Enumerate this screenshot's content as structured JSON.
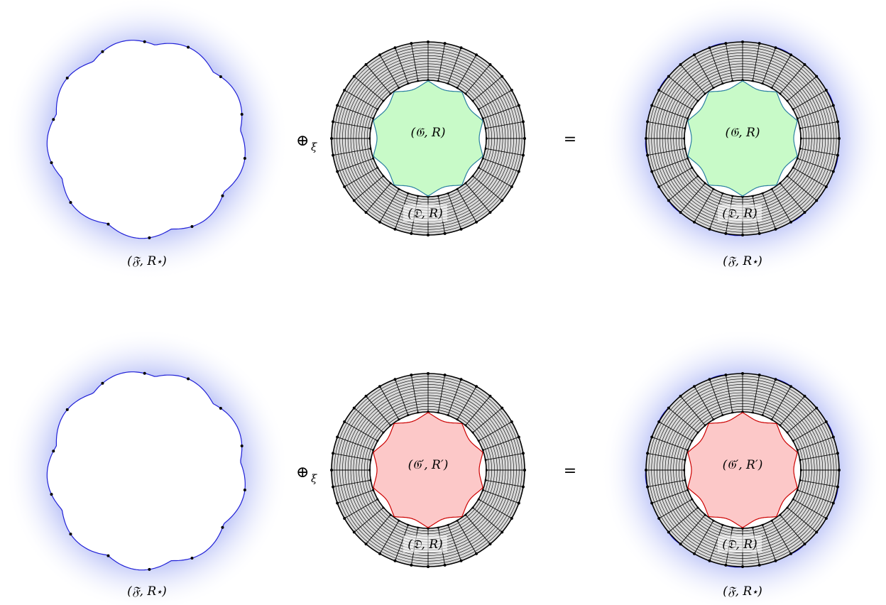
{
  "colors": {
    "halo": "#7f8ef0",
    "boundary": "#1f1fd6",
    "ring_fill": "#d9d9d9",
    "ring_lines": "#000000",
    "green_fill": "#c8fac8",
    "green_stroke": "#2a7fa0",
    "red_fill": "#fcc8c8",
    "red_stroke": "#cc0000"
  },
  "rows": [
    {
      "left_label": "(𝔉, R⋆)",
      "operator": "⊕",
      "operator_sub": "ξ",
      "center_inner_label": "(𝔊, R)",
      "center_outer_label": "(𝔇, R)",
      "equals": "=",
      "right_inner_label": "(𝔊, R)",
      "right_outer_label": "(𝔇, R)",
      "right_bottom_label": "(𝔉, R⋆)",
      "inner_variant": "green"
    },
    {
      "left_label": "(𝔉, R⋆)",
      "operator": "⊕",
      "operator_sub": "ξ",
      "center_inner_label": "(𝔊′, R′)",
      "center_outer_label": "(𝔇, R)",
      "equals": "=",
      "right_inner_label": "(𝔊′, R′)",
      "right_outer_label": "(𝔇, R)",
      "right_bottom_label": "(𝔉, R⋆)",
      "inner_variant": "red"
    }
  ]
}
